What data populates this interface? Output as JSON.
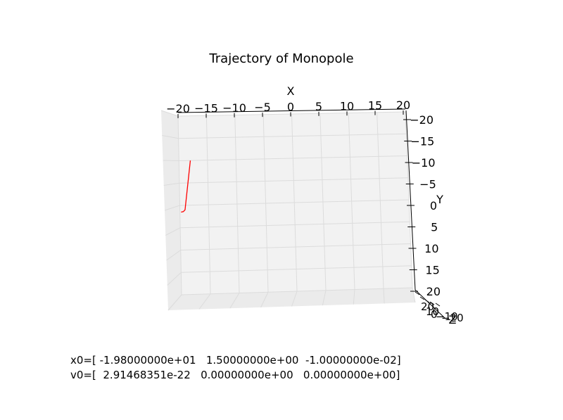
{
  "chart_data": {
    "type": "line",
    "title": "Trajectory of Monopole",
    "xlabel": "X",
    "ylabel": "Y",
    "zlabel": "Z",
    "xlim": [
      -20,
      20
    ],
    "ylim": [
      -20,
      20
    ],
    "zlim": [
      -20,
      20
    ],
    "x_ticks": [
      "−20",
      "−15",
      "−10",
      "−5",
      "0",
      "5",
      "10",
      "15",
      "20"
    ],
    "y_ticks": [
      "−20",
      "−15",
      "−10",
      "−5",
      "0",
      "5",
      "10",
      "15",
      "20"
    ],
    "z_ticks": [
      "20",
      "10",
      "0",
      "−10",
      "−20"
    ],
    "grid": true,
    "series_color": "#ff0000",
    "series": [
      {
        "x": [
          -18.0,
          -18.1,
          -18.3,
          -18.5,
          -18.7,
          -18.9,
          -19.0,
          -19.1,
          -19.4,
          -19.8
        ],
        "y": [
          -10.0,
          -9.0,
          -7.0,
          -5.0,
          -3.0,
          -1.0,
          0.0,
          1.0,
          1.4,
          1.5
        ]
      }
    ],
    "annotations": [
      "x0=[ -1.98000000e+01   1.50000000e+00  -1.00000000e-02]",
      "v0=[  2.91468351e-22   0.00000000e+00   0.00000000e+00]"
    ]
  }
}
